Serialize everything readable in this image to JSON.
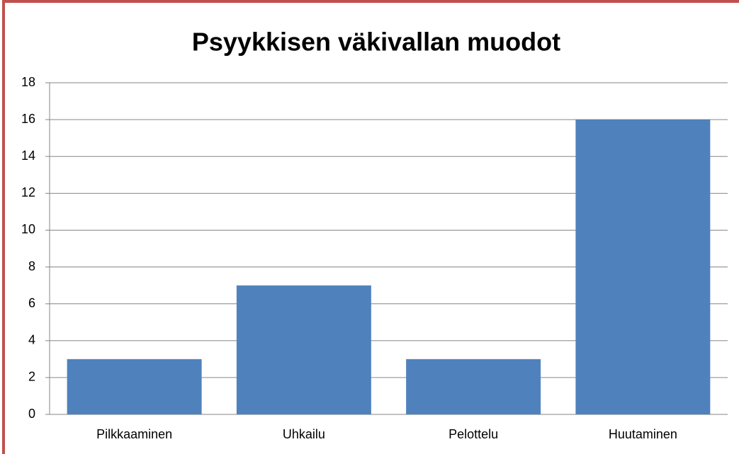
{
  "chart_data": {
    "type": "bar",
    "title": "Psyykkisen väkivallan muodot",
    "categories": [
      "Pilkkaaminen",
      "Uhkailu",
      "Pelottelu",
      "Huutaminen"
    ],
    "values": [
      3,
      7,
      3,
      16
    ],
    "color": "#4f81bd",
    "ylim": [
      0,
      18
    ],
    "yticks": [
      0,
      2,
      4,
      6,
      8,
      10,
      12,
      14,
      16,
      18
    ],
    "grid": true
  }
}
